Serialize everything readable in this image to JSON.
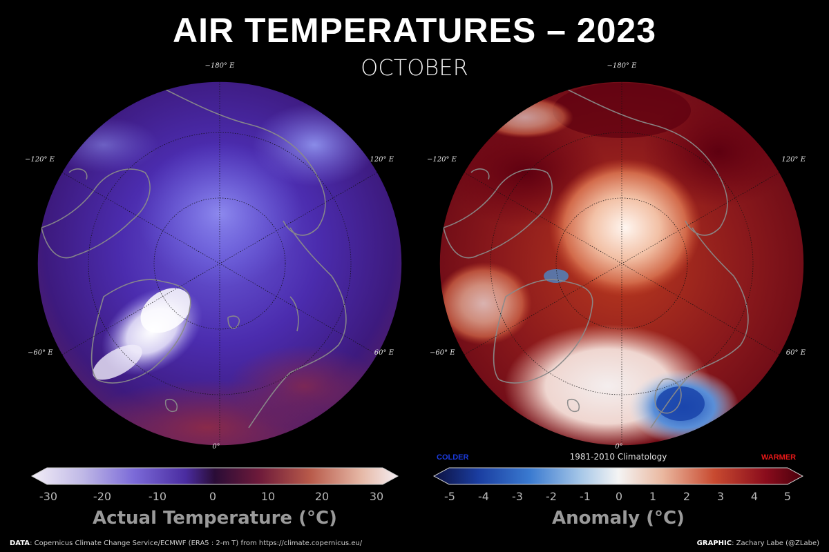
{
  "header": {
    "title": "AIR TEMPERATURES – 2023",
    "subtitle": "OCTOBER"
  },
  "maps": {
    "lon_labels": {
      "top": "−180° E",
      "upper_left": "−120° E",
      "upper_right": "120° E",
      "lower_left": "−60° E",
      "lower_right": "60° E",
      "bottom": "0°"
    },
    "left": {
      "name": "Actual Temperature map"
    },
    "right": {
      "name": "Anomaly map"
    }
  },
  "colorbar_left": {
    "ticks": [
      "-30",
      "-20",
      "-10",
      "0",
      "10",
      "20",
      "30"
    ],
    "title": "Actual Temperature (°C)"
  },
  "colorbar_right": {
    "ticks": [
      "-5",
      "-4",
      "-3",
      "-2",
      "-1",
      "0",
      "1",
      "2",
      "3",
      "4",
      "5"
    ],
    "title": "Anomaly (°C)",
    "baseline": "1981-2010 Climatology",
    "colder": "COLDER",
    "warmer": "WARMER"
  },
  "footer": {
    "data_label": "DATA",
    "data_text": ": Copernicus Climate Change Service/ECMWF (ERA5 : 2-m T) from https://climate.copernicus.eu/",
    "graphic_label": "GRAPHIC",
    "graphic_text": ": Zachary Labe (@ZLabe)"
  },
  "colors": {
    "background": "#000000",
    "coast": "#8a8a8a",
    "warm_dark": "#6b0012",
    "cold_blue": "#2a62c8"
  }
}
